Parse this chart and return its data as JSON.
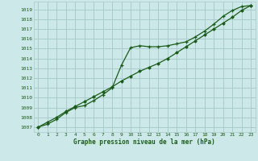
{
  "xlabel": "Graphe pression niveau de la mer (hPa)",
  "bg_color": "#cde8e8",
  "grid_color": "#aacccc",
  "line_color": "#1a5c1a",
  "ylim": [
    1006.5,
    1019.8
  ],
  "xlim": [
    -0.5,
    23.5
  ],
  "yticks": [
    1007,
    1008,
    1009,
    1010,
    1011,
    1012,
    1013,
    1014,
    1015,
    1016,
    1017,
    1018,
    1019
  ],
  "xticks": [
    0,
    1,
    2,
    3,
    4,
    5,
    6,
    7,
    8,
    9,
    10,
    11,
    12,
    13,
    14,
    15,
    16,
    17,
    18,
    19,
    20,
    21,
    22,
    23
  ],
  "line1": [
    1007.0,
    1007.3,
    1007.8,
    1008.5,
    1009.0,
    1009.2,
    1009.7,
    1010.3,
    1011.0,
    1013.3,
    1015.1,
    1015.3,
    1015.2,
    1015.2,
    1015.3,
    1015.5,
    1015.7,
    1016.2,
    1016.8,
    1017.5,
    1018.3,
    1018.9,
    1019.3,
    1019.4
  ],
  "line2": [
    1007.0,
    1007.5,
    1008.0,
    1008.6,
    1009.1,
    1009.6,
    1010.1,
    1010.6,
    1011.1,
    1011.7,
    1012.2,
    1012.7,
    1013.1,
    1013.5,
    1014.0,
    1014.6,
    1015.2,
    1015.8,
    1016.4,
    1017.0,
    1017.6,
    1018.2,
    1018.9,
    1019.4
  ]
}
